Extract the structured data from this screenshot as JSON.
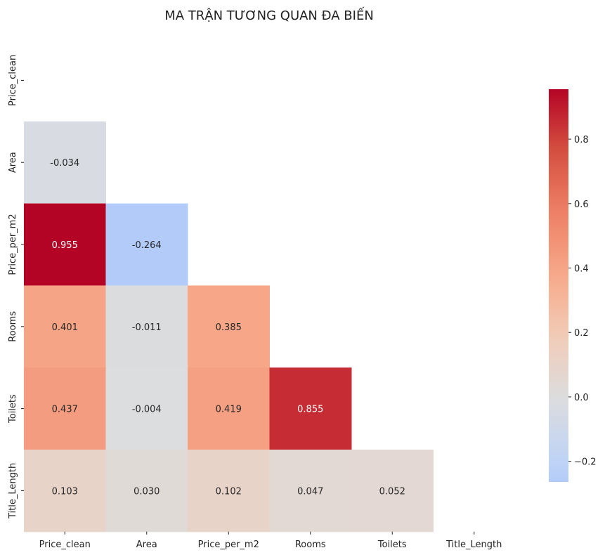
{
  "chart_data": {
    "type": "heatmap",
    "title": "MA TRẬN TƯƠNG QUAN ĐA BIẾN",
    "variables": [
      "Price_clean",
      "Area",
      "Price_per_m2",
      "Rooms",
      "Toilets",
      "Title_Length"
    ],
    "mask": "upper-triangle-including-diagonal",
    "matrix": [
      [
        null,
        null,
        null,
        null,
        null,
        null
      ],
      [
        -0.034,
        null,
        null,
        null,
        null,
        null
      ],
      [
        0.955,
        -0.264,
        null,
        null,
        null,
        null
      ],
      [
        0.401,
        -0.011,
        0.385,
        null,
        null,
        null
      ],
      [
        0.437,
        -0.004,
        0.419,
        0.855,
        null,
        null
      ],
      [
        0.103,
        0.03,
        0.102,
        0.047,
        0.052,
        null
      ]
    ],
    "labels": [
      [
        null,
        null,
        null,
        null,
        null,
        null
      ],
      [
        "-0.034",
        null,
        null,
        null,
        null,
        null
      ],
      [
        "0.955",
        "-0.264",
        null,
        null,
        null,
        null
      ],
      [
        "0.401",
        "-0.011",
        "0.385",
        null,
        null,
        null
      ],
      [
        "0.437",
        "-0.004",
        "0.419",
        "0.855",
        null,
        null
      ],
      [
        "0.103",
        "0.030",
        "0.102",
        "0.047",
        "0.052",
        null
      ]
    ],
    "colormap": "coolwarm",
    "color_center": 0,
    "color_range": [
      -0.264,
      0.955
    ],
    "colorbar_ticks": [
      -0.2,
      0.0,
      0.2,
      0.4,
      0.6,
      0.8
    ],
    "colorbar_tick_labels": [
      "−0.2",
      "0.0",
      "0.2",
      "0.4",
      "0.6",
      "0.8"
    ]
  }
}
